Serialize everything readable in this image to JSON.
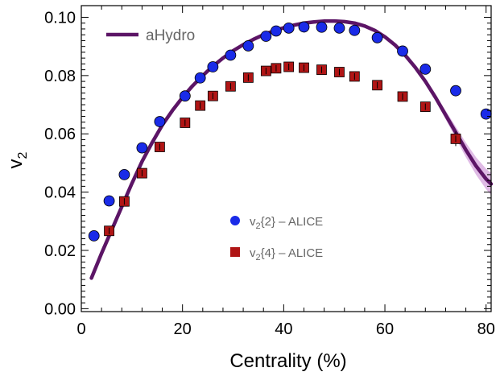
{
  "chart_data": {
    "type": "scatter",
    "xlabel": "Centrality (%)",
    "ylabel": "v",
    "ylabel_subscript": "2",
    "xlim": [
      0,
      81
    ],
    "ylim": [
      -0.001,
      0.104
    ],
    "x_ticks": [
      0,
      20,
      40,
      60,
      80
    ],
    "x_tick_labels": [
      "0",
      "20",
      "40",
      "60",
      "80"
    ],
    "y_ticks": [
      0.0,
      0.02,
      0.04,
      0.06,
      0.08,
      0.1
    ],
    "y_tick_labels": [
      "0.00",
      "0.02",
      "0.04",
      "0.06",
      "0.08",
      "0.10"
    ],
    "grid": false,
    "frame": true,
    "legend_placement": "top-left (curve), center-bottom (points)",
    "series": [
      {
        "name": "aHydro",
        "kind": "line",
        "color": "#5c1566",
        "band_color": "#d9aee0",
        "x": [
          2,
          4,
          6,
          8,
          10,
          12,
          14,
          16,
          18,
          20,
          22,
          24,
          26,
          28,
          30,
          32,
          34,
          36,
          38,
          40,
          42,
          44,
          46,
          48,
          50,
          52,
          54,
          56,
          58,
          60,
          62,
          64,
          66,
          68,
          70,
          72,
          74,
          76,
          78,
          80,
          81
        ],
        "y": [
          0.0105,
          0.019,
          0.027,
          0.035,
          0.043,
          0.0505,
          0.057,
          0.063,
          0.068,
          0.0725,
          0.0765,
          0.08,
          0.0832,
          0.086,
          0.0885,
          0.0906,
          0.0924,
          0.094,
          0.0953,
          0.0964,
          0.0973,
          0.098,
          0.0984,
          0.0987,
          0.0987,
          0.0985,
          0.098,
          0.097,
          0.0955,
          0.0933,
          0.0905,
          0.087,
          0.0828,
          0.078,
          0.0725,
          0.0665,
          0.0605,
          0.0545,
          0.049,
          0.0445,
          0.0428
        ],
        "band_halfwidth": [
          0,
          0,
          0,
          0,
          0,
          0,
          0,
          0,
          0,
          0,
          0,
          0,
          0,
          0,
          0,
          0,
          0,
          0,
          0,
          0,
          0,
          0,
          0,
          0,
          0,
          0,
          0,
          0,
          0,
          0,
          0,
          0,
          0.0003,
          0.0006,
          0.001,
          0.0015,
          0.002,
          0.0025,
          0.003,
          0.0035,
          0.0038
        ]
      },
      {
        "name": "v2{2} – ALICE",
        "legend_main": "v",
        "legend_sub": "2",
        "legend_rest": "{2} – ALICE",
        "kind": "points",
        "marker": "circle",
        "color": "#1a2be8",
        "x": [
          2.5,
          5.5,
          8.5,
          12,
          15.5,
          20.5,
          23.5,
          26,
          29.5,
          33,
          36.5,
          38.5,
          41,
          44,
          47.5,
          51,
          54,
          58.5,
          63.5,
          68,
          74,
          80
        ],
        "y": [
          0.025,
          0.037,
          0.046,
          0.0552,
          0.0642,
          0.073,
          0.0792,
          0.083,
          0.087,
          0.0902,
          0.0935,
          0.0953,
          0.0963,
          0.0967,
          0.0966,
          0.0963,
          0.0955,
          0.093,
          0.0884,
          0.0822,
          0.0748,
          0.0668
        ],
        "err": [
          0.0002,
          0.0002,
          0.0002,
          0.0002,
          0.0002,
          0.0002,
          0.0002,
          0.0002,
          0.0002,
          0.0002,
          0.0002,
          0.0002,
          0.0002,
          0.0002,
          0.0002,
          0.0002,
          0.0002,
          0.0002,
          0.0002,
          0.0003,
          0.0004,
          0.0006
        ]
      },
      {
        "name": "v2{4} – ALICE",
        "legend_main": "v",
        "legend_sub": "2",
        "legend_rest": "{4} – ALICE",
        "kind": "points",
        "marker": "square",
        "color": "#b01515",
        "x": [
          5.5,
          8.5,
          12,
          15.5,
          20.5,
          23.5,
          26,
          29.5,
          33,
          36.5,
          38.5,
          41,
          44,
          47.5,
          51,
          54,
          58.5,
          63.5,
          68,
          74
        ],
        "y": [
          0.0267,
          0.0368,
          0.0465,
          0.0555,
          0.0638,
          0.0697,
          0.073,
          0.0763,
          0.0793,
          0.0816,
          0.0825,
          0.083,
          0.0827,
          0.082,
          0.0812,
          0.0797,
          0.0767,
          0.0728,
          0.0693,
          0.0583
        ],
        "err": [
          0.0005,
          0.0005,
          0.0005,
          0.0005,
          0.0005,
          0.0005,
          0.0005,
          0.0005,
          0.0005,
          0.0005,
          0.0005,
          0.0005,
          0.0005,
          0.0005,
          0.0005,
          0.0005,
          0.0005,
          0.0006,
          0.0007,
          0.0025
        ]
      }
    ]
  }
}
